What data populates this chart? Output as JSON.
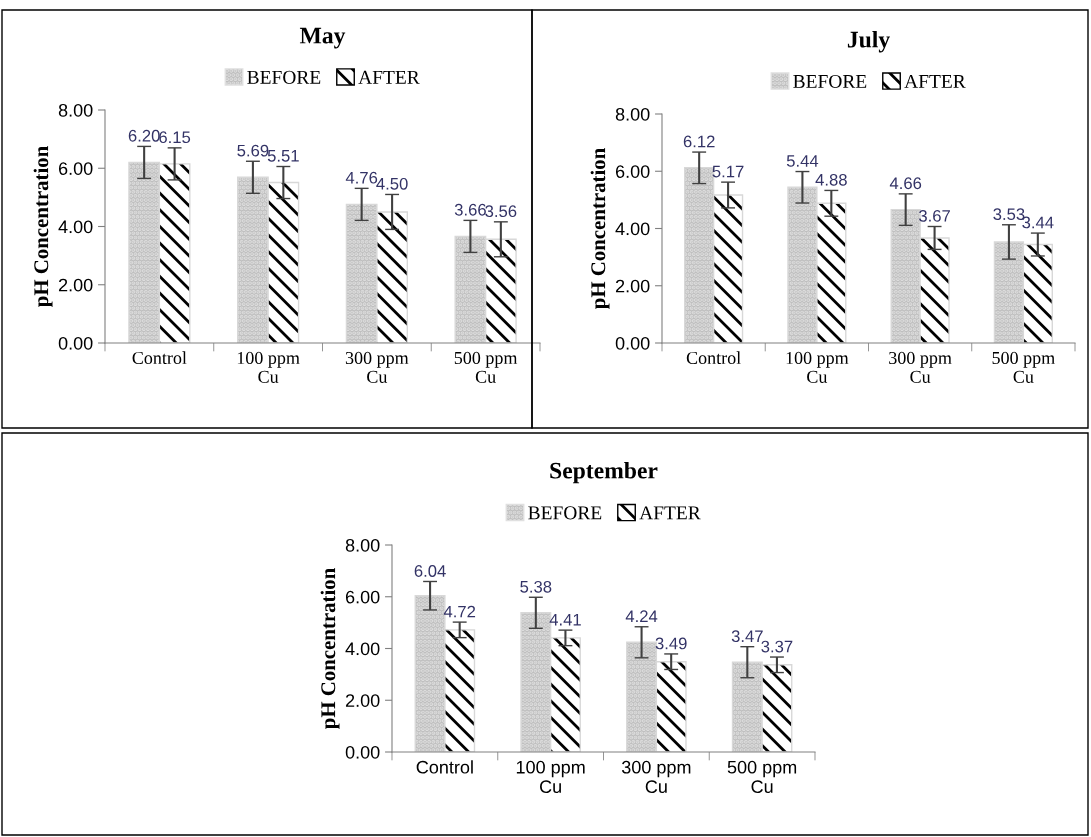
{
  "chart_data": [
    {
      "type": "bar",
      "title": "May",
      "ylabel": "pH Concentration",
      "categories": [
        "Control",
        "100 ppm\nCu",
        "300 ppm\nCu",
        "500 ppm\nCu"
      ],
      "legend": "top",
      "ylim": [
        0,
        8
      ],
      "yticks": [
        {
          "value": 0,
          "label": "0.00"
        },
        {
          "value": 2,
          "label": "2.00"
        },
        {
          "value": 4,
          "label": "4.00"
        },
        {
          "value": 6,
          "label": "6.00"
        },
        {
          "value": 8,
          "label": "8.00"
        }
      ],
      "series": [
        {
          "name": "BEFORE",
          "color": "#bfbfbf",
          "values": [
            6.2,
            5.69,
            4.76,
            3.66
          ],
          "errors": [
            0.55,
            0.55,
            0.55,
            0.55
          ],
          "value_labels": [
            "6.20",
            "5.69",
            "4.76",
            "3.66"
          ]
        },
        {
          "name": "AFTER",
          "color": "#000000",
          "values": [
            6.15,
            5.51,
            4.5,
            3.56
          ],
          "errors": [
            0.55,
            0.55,
            0.6,
            0.6
          ],
          "value_labels": [
            "6.15",
            "5.51",
            "4.50",
            "3.56"
          ]
        }
      ]
    },
    {
      "type": "bar",
      "title": "July",
      "ylabel": "pH Concentration",
      "categories": [
        "Control",
        "100 ppm\nCu",
        "300 ppm\nCu",
        "500 ppm\nCu"
      ],
      "legend": "top",
      "ylim": [
        0,
        8
      ],
      "yticks": [
        {
          "value": 0,
          "label": "0.00"
        },
        {
          "value": 2,
          "label": "2.00"
        },
        {
          "value": 4,
          "label": "4.00"
        },
        {
          "value": 6,
          "label": "6.00"
        },
        {
          "value": 8,
          "label": "8.00"
        }
      ],
      "series": [
        {
          "name": "BEFORE",
          "color": "#bfbfbf",
          "values": [
            6.12,
            5.44,
            4.66,
            3.53
          ],
          "errors": [
            0.55,
            0.55,
            0.55,
            0.6
          ],
          "value_labels": [
            "6.12",
            "5.44",
            "4.66",
            "3.53"
          ]
        },
        {
          "name": "AFTER",
          "color": "#000000",
          "values": [
            5.17,
            4.88,
            3.67,
            3.44
          ],
          "errors": [
            0.45,
            0.45,
            0.4,
            0.4
          ],
          "value_labels": [
            "5.17",
            "4.88",
            "3.67",
            "3.44"
          ]
        }
      ]
    },
    {
      "type": "bar",
      "title": "September",
      "ylabel": "pH Concentration",
      "categories": [
        "Control",
        "100 ppm\nCu",
        "300 ppm\nCu",
        "500 ppm\nCu"
      ],
      "legend": "top",
      "ylim": [
        0,
        8
      ],
      "yticks": [
        {
          "value": 0,
          "label": "0.00"
        },
        {
          "value": 2,
          "label": "2.00"
        },
        {
          "value": 4,
          "label": "4.00"
        },
        {
          "value": 6,
          "label": "6.00"
        },
        {
          "value": 8,
          "label": "8.00"
        }
      ],
      "series": [
        {
          "name": "BEFORE",
          "color": "#bfbfbf",
          "values": [
            6.04,
            5.38,
            4.24,
            3.47
          ],
          "errors": [
            0.55,
            0.6,
            0.6,
            0.6
          ],
          "value_labels": [
            "6.04",
            "5.38",
            "4.24",
            "3.47"
          ]
        },
        {
          "name": "AFTER",
          "color": "#000000",
          "values": [
            4.72,
            4.41,
            3.49,
            3.37
          ],
          "errors": [
            0.3,
            0.3,
            0.3,
            0.3
          ],
          "value_labels": [
            "4.72",
            "4.41",
            "3.49",
            "3.37"
          ]
        }
      ]
    }
  ]
}
